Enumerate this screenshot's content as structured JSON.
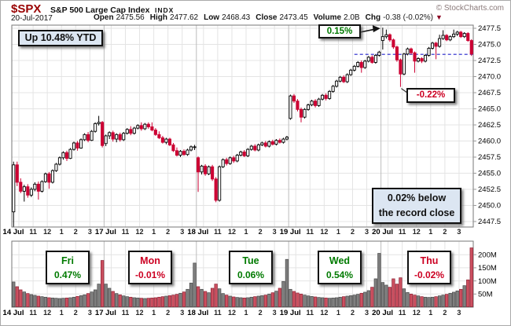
{
  "header": {
    "symbol": "$SPX",
    "name": "S&P 500 Large Cap Index",
    "exchange": "INDX",
    "credit": "© StockCharts.com",
    "date": "20-Jul-2017",
    "quote": [
      {
        "label": "Open",
        "value": "2475.56"
      },
      {
        "label": "High",
        "value": "2477.62"
      },
      {
        "label": "Low",
        "value": "2468.43"
      },
      {
        "label": "Close",
        "value": "2473.45"
      },
      {
        "label": "Volume",
        "value": "2.0B"
      }
    ],
    "chg_label": "Chg",
    "chg_value": "-0.38 (-0.02%)",
    "chg_arrow": "▼"
  },
  "annotations": {
    "ytd": "Up 10.48% YTD",
    "peak_pct": "0.15%",
    "dip_pct": "-0.22%",
    "record_line1": "0.02% below",
    "record_line2": "the record close"
  },
  "day_boxes": [
    {
      "day": "Fri",
      "pct": "0.47%",
      "dir": "up"
    },
    {
      "day": "Mon",
      "pct": "-0.01%",
      "dir": "down"
    },
    {
      "day": "Tue",
      "pct": "0.06%",
      "dir": "up"
    },
    {
      "day": "Wed",
      "pct": "0.54%",
      "dir": "up"
    },
    {
      "day": "Thu",
      "pct": "-0.02%",
      "dir": "down"
    }
  ],
  "colors": {
    "up_stroke": "#000000",
    "up_fill": "#ffffff",
    "down": "#cc0033",
    "vol_up_fill": "#7f7f7f",
    "vol_up_stroke": "#4a4a4a",
    "vol_down_fill": "#cc5060",
    "vol_down_stroke": "#8e2436",
    "grid": "#e4e4e4",
    "grid_day": "#bdbdbd",
    "frame": "#777777",
    "close_line": "#2222cc",
    "green": "#007a00",
    "red": "#cc0022",
    "maroon": "#990000"
  },
  "chart_data": {
    "type": "candlestick",
    "title": "$SPX 5-day intraday (15-minute bars) with volume",
    "days": [
      "14 Jul",
      "17 Jul",
      "18 Jul",
      "19 Jul",
      "20 Jul"
    ],
    "hour_labels": [
      "11",
      "12",
      "1",
      "2",
      "3"
    ],
    "bars_per_day": 26,
    "price_axis": {
      "min": 2447.5,
      "max": 2477.5,
      "step": 2.5
    },
    "volume_axis_ticks": [
      {
        "label": "200M",
        "value": 200
      },
      {
        "label": "150M",
        "value": 150
      },
      {
        "label": "100M",
        "value": 100
      },
      {
        "label": "50M",
        "value": 50
      }
    ],
    "close_line_value": 2473.45,
    "close_line_from_bar": 96,
    "peak_arrow_bar": 104,
    "dip_callout_bar": 109,
    "ohlc_by_day": [
      [
        [
          2449.0,
          2456.8,
          2446.6,
          2456.3
        ],
        [
          2456.3,
          2456.8,
          2453.0,
          2453.6
        ],
        [
          2453.6,
          2454.2,
          2451.9,
          2452.2
        ],
        [
          2452.2,
          2453.2,
          2450.6,
          2452.9
        ],
        [
          2452.9,
          2453.3,
          2451.2,
          2451.6
        ],
        [
          2451.6,
          2452.8,
          2451.3,
          2452.5
        ],
        [
          2452.5,
          2453.6,
          2452.2,
          2453.3
        ],
        [
          2453.3,
          2453.7,
          2450.9,
          2452.2
        ],
        [
          2452.2,
          2453.9,
          2452.0,
          2453.7
        ],
        [
          2453.7,
          2455.1,
          2453.5,
          2454.9
        ],
        [
          2454.9,
          2455.2,
          2452.6,
          2453.6
        ],
        [
          2453.6,
          2455.6,
          2453.4,
          2455.4
        ],
        [
          2455.4,
          2456.6,
          2455.2,
          2456.4
        ],
        [
          2456.4,
          2457.6,
          2456.2,
          2457.4
        ],
        [
          2457.4,
          2458.4,
          2457.1,
          2458.2
        ],
        [
          2458.2,
          2458.5,
          2456.9,
          2457.3
        ],
        [
          2457.3,
          2458.9,
          2457.2,
          2458.7
        ],
        [
          2458.7,
          2459.9,
          2458.5,
          2459.7
        ],
        [
          2459.7,
          2460.0,
          2458.5,
          2458.9
        ],
        [
          2458.9,
          2460.4,
          2458.8,
          2460.2
        ],
        [
          2460.2,
          2461.2,
          2460.0,
          2461.0
        ],
        [
          2461.0,
          2461.4,
          2459.8,
          2460.1
        ],
        [
          2460.1,
          2461.7,
          2460.0,
          2461.5
        ],
        [
          2461.5,
          2462.9,
          2461.3,
          2462.7
        ],
        [
          2462.7,
          2463.9,
          2462.4,
          2462.9
        ],
        [
          2462.9,
          2463.1,
          2459.0,
          2459.3
        ]
      ],
      [
        [
          2459.6,
          2461.0,
          2459.2,
          2460.8
        ],
        [
          2460.8,
          2461.5,
          2460.3,
          2461.3
        ],
        [
          2461.3,
          2461.6,
          2459.9,
          2460.3
        ],
        [
          2460.3,
          2461.2,
          2459.8,
          2461.0
        ],
        [
          2461.0,
          2461.3,
          2459.9,
          2460.2
        ],
        [
          2460.2,
          2461.4,
          2460.0,
          2461.2
        ],
        [
          2461.2,
          2462.0,
          2461.0,
          2461.8
        ],
        [
          2461.8,
          2462.3,
          2460.9,
          2461.2
        ],
        [
          2461.2,
          2462.2,
          2461.0,
          2462.0
        ],
        [
          2462.0,
          2462.6,
          2461.8,
          2462.4
        ],
        [
          2462.4,
          2462.9,
          2461.6,
          2461.9
        ],
        [
          2461.9,
          2462.8,
          2461.7,
          2462.6
        ],
        [
          2462.6,
          2462.9,
          2461.9,
          2462.2
        ],
        [
          2462.2,
          2462.9,
          2461.5,
          2461.7
        ],
        [
          2461.7,
          2462.0,
          2460.8,
          2461.0
        ],
        [
          2461.0,
          2461.5,
          2460.3,
          2460.5
        ],
        [
          2460.5,
          2460.8,
          2459.6,
          2459.8
        ],
        [
          2459.8,
          2460.5,
          2459.5,
          2460.3
        ],
        [
          2460.3,
          2460.5,
          2459.2,
          2459.4
        ],
        [
          2459.4,
          2459.7,
          2458.3,
          2458.5
        ],
        [
          2458.5,
          2459.0,
          2457.6,
          2457.8
        ],
        [
          2457.8,
          2458.6,
          2457.5,
          2458.4
        ],
        [
          2458.4,
          2458.7,
          2457.7,
          2457.9
        ],
        [
          2457.9,
          2458.8,
          2457.7,
          2458.6
        ],
        [
          2458.6,
          2459.3,
          2458.4,
          2459.1
        ],
        [
          2459.1,
          2459.4,
          2458.6,
          2459.1
        ]
      ],
      [
        [
          2457.4,
          2457.6,
          2452.1,
          2455.2
        ],
        [
          2455.2,
          2456.3,
          2454.8,
          2456.1
        ],
        [
          2456.1,
          2456.4,
          2454.6,
          2454.9
        ],
        [
          2454.9,
          2456.2,
          2454.7,
          2456.0
        ],
        [
          2456.0,
          2456.3,
          2453.8,
          2454.1
        ],
        [
          2454.1,
          2454.4,
          2450.5,
          2450.8
        ],
        [
          2450.8,
          2456.2,
          2450.6,
          2456.0
        ],
        [
          2456.0,
          2457.3,
          2455.8,
          2457.1
        ],
        [
          2457.1,
          2457.4,
          2456.2,
          2456.5
        ],
        [
          2456.5,
          2457.6,
          2456.3,
          2457.4
        ],
        [
          2457.4,
          2457.7,
          2456.6,
          2456.9
        ],
        [
          2456.9,
          2458.0,
          2456.7,
          2457.8
        ],
        [
          2457.8,
          2458.5,
          2457.6,
          2458.3
        ],
        [
          2458.3,
          2458.6,
          2457.5,
          2457.7
        ],
        [
          2457.7,
          2458.9,
          2457.5,
          2458.7
        ],
        [
          2458.7,
          2459.4,
          2458.5,
          2459.2
        ],
        [
          2459.2,
          2459.5,
          2458.4,
          2458.6
        ],
        [
          2458.6,
          2459.6,
          2458.4,
          2459.4
        ],
        [
          2459.4,
          2459.9,
          2459.2,
          2459.7
        ],
        [
          2459.7,
          2460.0,
          2459.0,
          2459.2
        ],
        [
          2459.2,
          2460.1,
          2459.0,
          2459.9
        ],
        [
          2459.9,
          2460.2,
          2459.3,
          2459.5
        ],
        [
          2459.5,
          2460.3,
          2459.3,
          2460.1
        ],
        [
          2460.1,
          2460.4,
          2459.6,
          2459.8
        ],
        [
          2459.8,
          2460.5,
          2459.6,
          2460.3
        ],
        [
          2460.3,
          2460.8,
          2460.1,
          2460.6
        ]
      ],
      [
        [
          2463.5,
          2467.2,
          2463.3,
          2467.0
        ],
        [
          2467.0,
          2467.3,
          2465.9,
          2466.2
        ],
        [
          2466.2,
          2466.5,
          2464.6,
          2464.9
        ],
        [
          2464.9,
          2465.2,
          2462.9,
          2463.7
        ],
        [
          2463.7,
          2465.1,
          2463.5,
          2464.9
        ],
        [
          2464.9,
          2465.8,
          2464.7,
          2465.6
        ],
        [
          2465.6,
          2466.4,
          2465.4,
          2466.2
        ],
        [
          2466.2,
          2466.5,
          2465.2,
          2465.5
        ],
        [
          2465.5,
          2466.7,
          2465.3,
          2466.5
        ],
        [
          2466.5,
          2467.3,
          2466.3,
          2467.1
        ],
        [
          2467.1,
          2467.4,
          2466.3,
          2466.6
        ],
        [
          2466.6,
          2467.9,
          2466.4,
          2467.7
        ],
        [
          2467.7,
          2468.7,
          2467.5,
          2468.5
        ],
        [
          2468.5,
          2469.5,
          2468.3,
          2469.3
        ],
        [
          2469.3,
          2470.1,
          2469.1,
          2469.9
        ],
        [
          2469.9,
          2470.2,
          2469.0,
          2469.2
        ],
        [
          2469.2,
          2470.5,
          2469.0,
          2470.3
        ],
        [
          2470.3,
          2471.2,
          2470.1,
          2471.0
        ],
        [
          2471.0,
          2471.8,
          2470.8,
          2471.6
        ],
        [
          2471.6,
          2472.4,
          2471.4,
          2472.2
        ],
        [
          2472.2,
          2472.5,
          2470.6,
          2471.4
        ],
        [
          2471.4,
          2472.6,
          2471.2,
          2472.4
        ],
        [
          2472.4,
          2473.2,
          2472.2,
          2473.0
        ],
        [
          2473.0,
          2473.3,
          2472.0,
          2472.2
        ],
        [
          2472.2,
          2473.5,
          2472.0,
          2473.3
        ],
        [
          2473.3,
          2474.0,
          2473.1,
          2473.8
        ]
      ],
      [
        [
          2475.6,
          2477.6,
          2474.2,
          2476.2
        ],
        [
          2476.2,
          2477.3,
          2475.9,
          2476.5
        ],
        [
          2476.5,
          2476.7,
          2475.4,
          2475.7
        ],
        [
          2475.7,
          2475.9,
          2474.3,
          2474.6
        ],
        [
          2474.6,
          2474.8,
          2472.3,
          2472.6
        ],
        [
          2472.6,
          2472.8,
          2468.4,
          2470.4
        ],
        [
          2470.4,
          2473.7,
          2470.2,
          2473.5
        ],
        [
          2473.5,
          2474.5,
          2473.3,
          2474.3
        ],
        [
          2474.3,
          2474.5,
          2473.4,
          2473.7
        ],
        [
          2473.7,
          2473.9,
          2470.6,
          2472.4
        ],
        [
          2472.4,
          2473.0,
          2472.2,
          2472.8
        ],
        [
          2472.8,
          2473.0,
          2472.1,
          2472.4
        ],
        [
          2472.4,
          2473.5,
          2472.2,
          2473.3
        ],
        [
          2473.3,
          2474.6,
          2473.1,
          2474.4
        ],
        [
          2474.4,
          2475.4,
          2474.2,
          2475.2
        ],
        [
          2475.2,
          2475.4,
          2472.7,
          2474.7
        ],
        [
          2474.7,
          2476.5,
          2474.5,
          2475.9
        ],
        [
          2475.9,
          2477.2,
          2475.7,
          2476.4
        ],
        [
          2476.4,
          2476.6,
          2475.5,
          2475.7
        ],
        [
          2475.7,
          2476.4,
          2475.5,
          2476.2
        ],
        [
          2476.2,
          2477.3,
          2476.0,
          2476.6
        ],
        [
          2476.6,
          2477.1,
          2476.3,
          2476.9
        ],
        [
          2476.9,
          2477.1,
          2476.0,
          2476.2
        ],
        [
          2476.2,
          2476.9,
          2476.0,
          2476.7
        ],
        [
          2476.7,
          2476.9,
          2475.4,
          2475.6
        ],
        [
          2475.6,
          2475.8,
          2473.2,
          2473.5
        ]
      ]
    ],
    "volume_by_day": [
      [
        96,
        78,
        66,
        58,
        52,
        48,
        45,
        42,
        40,
        38,
        36,
        35,
        34,
        33,
        34,
        35,
        36,
        38,
        41,
        44,
        47,
        52,
        58,
        66,
        88,
        178
      ],
      [
        88,
        72,
        60,
        52,
        47,
        43,
        40,
        38,
        36,
        35,
        34,
        33,
        34,
        35,
        36,
        38,
        40,
        42,
        44,
        46,
        49,
        53,
        58,
        68,
        92,
        168
      ],
      [
        78,
        68,
        60,
        55,
        72,
        88,
        70,
        52,
        46,
        42,
        39,
        37,
        36,
        35,
        36,
        38,
        40,
        42,
        44,
        46,
        50,
        55,
        61,
        72,
        98,
        182
      ],
      [
        68,
        60,
        54,
        50,
        46,
        43,
        41,
        39,
        37,
        36,
        35,
        34,
        35,
        36,
        38,
        40,
        42,
        44,
        46,
        49,
        53,
        57,
        63,
        76,
        108,
        205
      ],
      [
        94,
        84,
        76,
        108,
        88,
        112,
        70,
        56,
        50,
        46,
        43,
        40,
        38,
        37,
        38,
        40,
        43,
        46,
        49,
        53,
        57,
        62,
        68,
        82,
        104,
        226
      ]
    ]
  }
}
